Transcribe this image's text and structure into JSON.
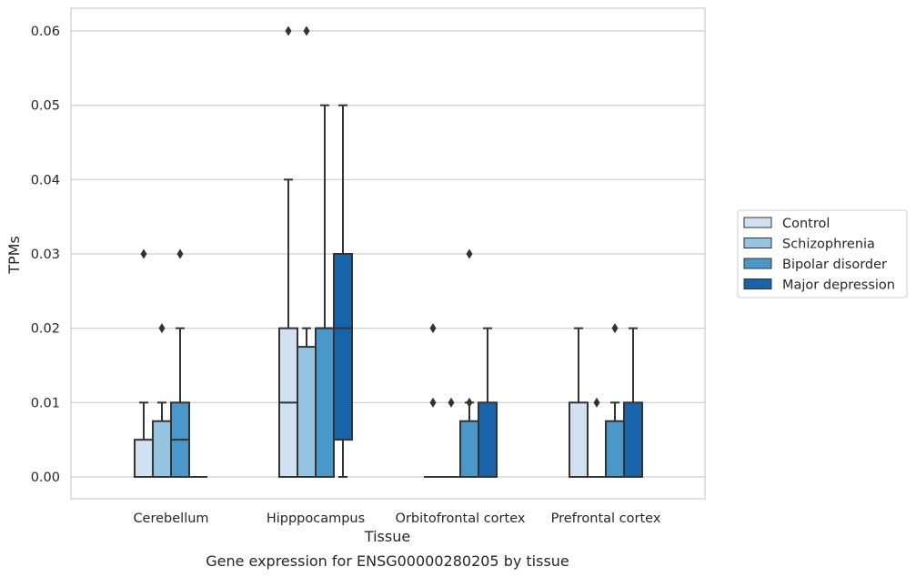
{
  "chart_data": {
    "type": "box",
    "caption": "Gene expression for ENSG00000280205 by tissue",
    "xlabel": "Tissue",
    "ylabel": "TPMs",
    "ylim": [
      -0.003,
      0.063
    ],
    "yticks": [
      0.0,
      0.01,
      0.02,
      0.03,
      0.04,
      0.05,
      0.06
    ],
    "ytick_labels": [
      "0.00",
      "0.01",
      "0.02",
      "0.03",
      "0.04",
      "0.05",
      "0.06"
    ],
    "grid": "horizontal",
    "legend_position": "right",
    "categories": [
      "Cerebellum",
      "Hipppocampus",
      "Orbitofrontal cortex",
      "Prefrontal cortex"
    ],
    "series": [
      {
        "name": "Control",
        "color": "#d0e1f2",
        "boxes": [
          {
            "whislo": 0.0,
            "q1": 0.0,
            "med": 0.0,
            "q3": 0.005,
            "whishi": 0.01,
            "fliers": [
              0.03
            ]
          },
          {
            "whislo": 0.0,
            "q1": 0.0,
            "med": 0.01,
            "q3": 0.02,
            "whishi": 0.04,
            "fliers": [
              0.06
            ]
          },
          {
            "whislo": 0.0,
            "q1": 0.0,
            "med": 0.0,
            "q3": 0.0,
            "whishi": 0.0,
            "fliers": [
              0.01,
              0.02
            ]
          },
          {
            "whislo": 0.0,
            "q1": 0.0,
            "med": 0.0,
            "q3": 0.01,
            "whishi": 0.02,
            "fliers": []
          }
        ]
      },
      {
        "name": "Schizophrenia",
        "color": "#94c4df",
        "boxes": [
          {
            "whislo": 0.0,
            "q1": 0.0,
            "med": 0.0,
            "q3": 0.0075,
            "whishi": 0.01,
            "fliers": [
              0.02
            ]
          },
          {
            "whislo": 0.0,
            "q1": 0.0,
            "med": 0.0,
            "q3": 0.0175,
            "whishi": 0.02,
            "fliers": [
              0.06
            ]
          },
          {
            "whislo": 0.0,
            "q1": 0.0,
            "med": 0.0,
            "q3": 0.0,
            "whishi": 0.0,
            "fliers": [
              0.01
            ]
          },
          {
            "whislo": 0.0,
            "q1": 0.0,
            "med": 0.0,
            "q3": 0.0,
            "whishi": 0.0,
            "fliers": [
              0.01
            ]
          }
        ]
      },
      {
        "name": "Bipolar disorder",
        "color": "#4a98c9",
        "boxes": [
          {
            "whislo": 0.0,
            "q1": 0.0,
            "med": 0.005,
            "q3": 0.01,
            "whishi": 0.02,
            "fliers": [
              0.03
            ]
          },
          {
            "whislo": 0.0,
            "q1": 0.0,
            "med": 0.02,
            "q3": 0.02,
            "whishi": 0.05,
            "fliers": []
          },
          {
            "whislo": 0.0,
            "q1": 0.0,
            "med": 0.0,
            "q3": 0.0075,
            "whishi": 0.01,
            "fliers": [
              0.01,
              0.03
            ]
          },
          {
            "whislo": 0.0,
            "q1": 0.0,
            "med": 0.0,
            "q3": 0.0075,
            "whishi": 0.01,
            "fliers": [
              0.02
            ]
          }
        ]
      },
      {
        "name": "Major depression",
        "color": "#1764ab",
        "boxes": [
          {
            "whislo": 0.0,
            "q1": 0.0,
            "med": 0.0,
            "q3": 0.0,
            "whishi": 0.0,
            "fliers": []
          },
          {
            "whislo": 0.0,
            "q1": 0.005,
            "med": 0.02,
            "q3": 0.03,
            "whishi": 0.05,
            "fliers": []
          },
          {
            "whislo": 0.0,
            "q1": 0.0,
            "med": 0.0,
            "q3": 0.01,
            "whishi": 0.02,
            "fliers": []
          },
          {
            "whislo": 0.0,
            "q1": 0.0,
            "med": 0.0,
            "q3": 0.01,
            "whishi": 0.02,
            "fliers": []
          }
        ]
      }
    ]
  }
}
